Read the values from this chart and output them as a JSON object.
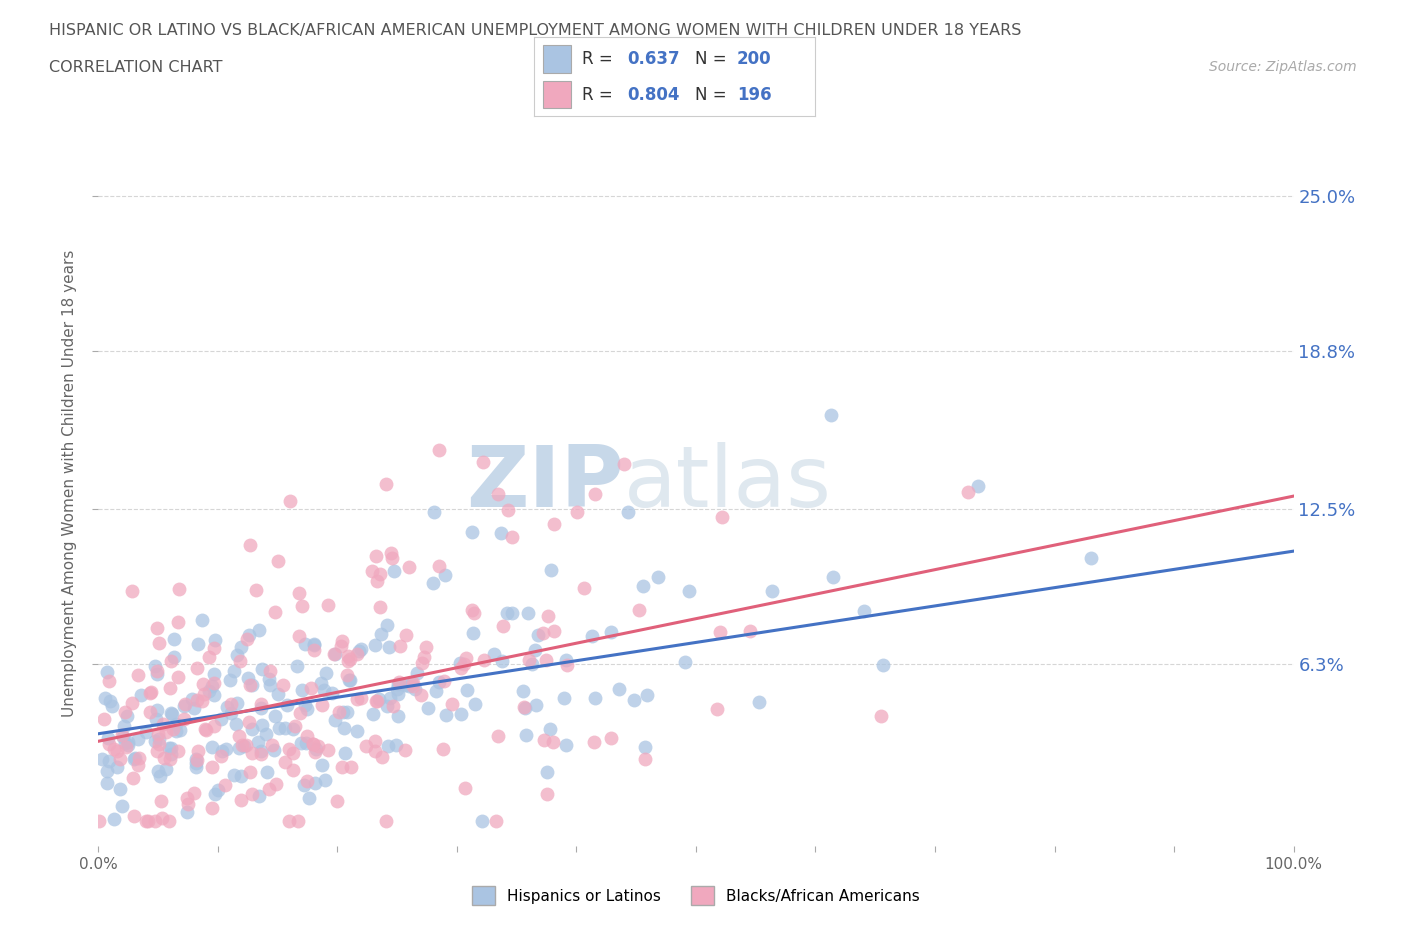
{
  "title": "HISPANIC OR LATINO VS BLACK/AFRICAN AMERICAN UNEMPLOYMENT AMONG WOMEN WITH CHILDREN UNDER 18 YEARS",
  "subtitle": "CORRELATION CHART",
  "source": "Source: ZipAtlas.com",
  "ylabel": "Unemployment Among Women with Children Under 18 years",
  "xlim": [
    0,
    100
  ],
  "ylim": [
    -1,
    28
  ],
  "ytick_vals": [
    6.3,
    12.5,
    18.8,
    25.0
  ],
  "ytick_labels": [
    "6.3%",
    "12.5%",
    "18.8%",
    "25.0%"
  ],
  "blue_color": "#aac4e2",
  "pink_color": "#f0a8be",
  "blue_line_color": "#4472c4",
  "pink_line_color": "#e0607a",
  "R_blue": 0.637,
  "N_blue": 200,
  "R_pink": 0.804,
  "N_pink": 196,
  "watermark_zip": "ZIP",
  "watermark_atlas": "atlas",
  "legend_label_blue": "Hispanics or Latinos",
  "legend_label_pink": "Blacks/African Americans",
  "background_color": "#ffffff",
  "grid_color": "#cccccc",
  "title_color": "#555555",
  "right_tick_color": "#4472c4",
  "blue_trend_start_y": 3.5,
  "blue_trend_end_y": 10.8,
  "pink_trend_start_y": 3.2,
  "pink_trend_end_y": 13.0
}
